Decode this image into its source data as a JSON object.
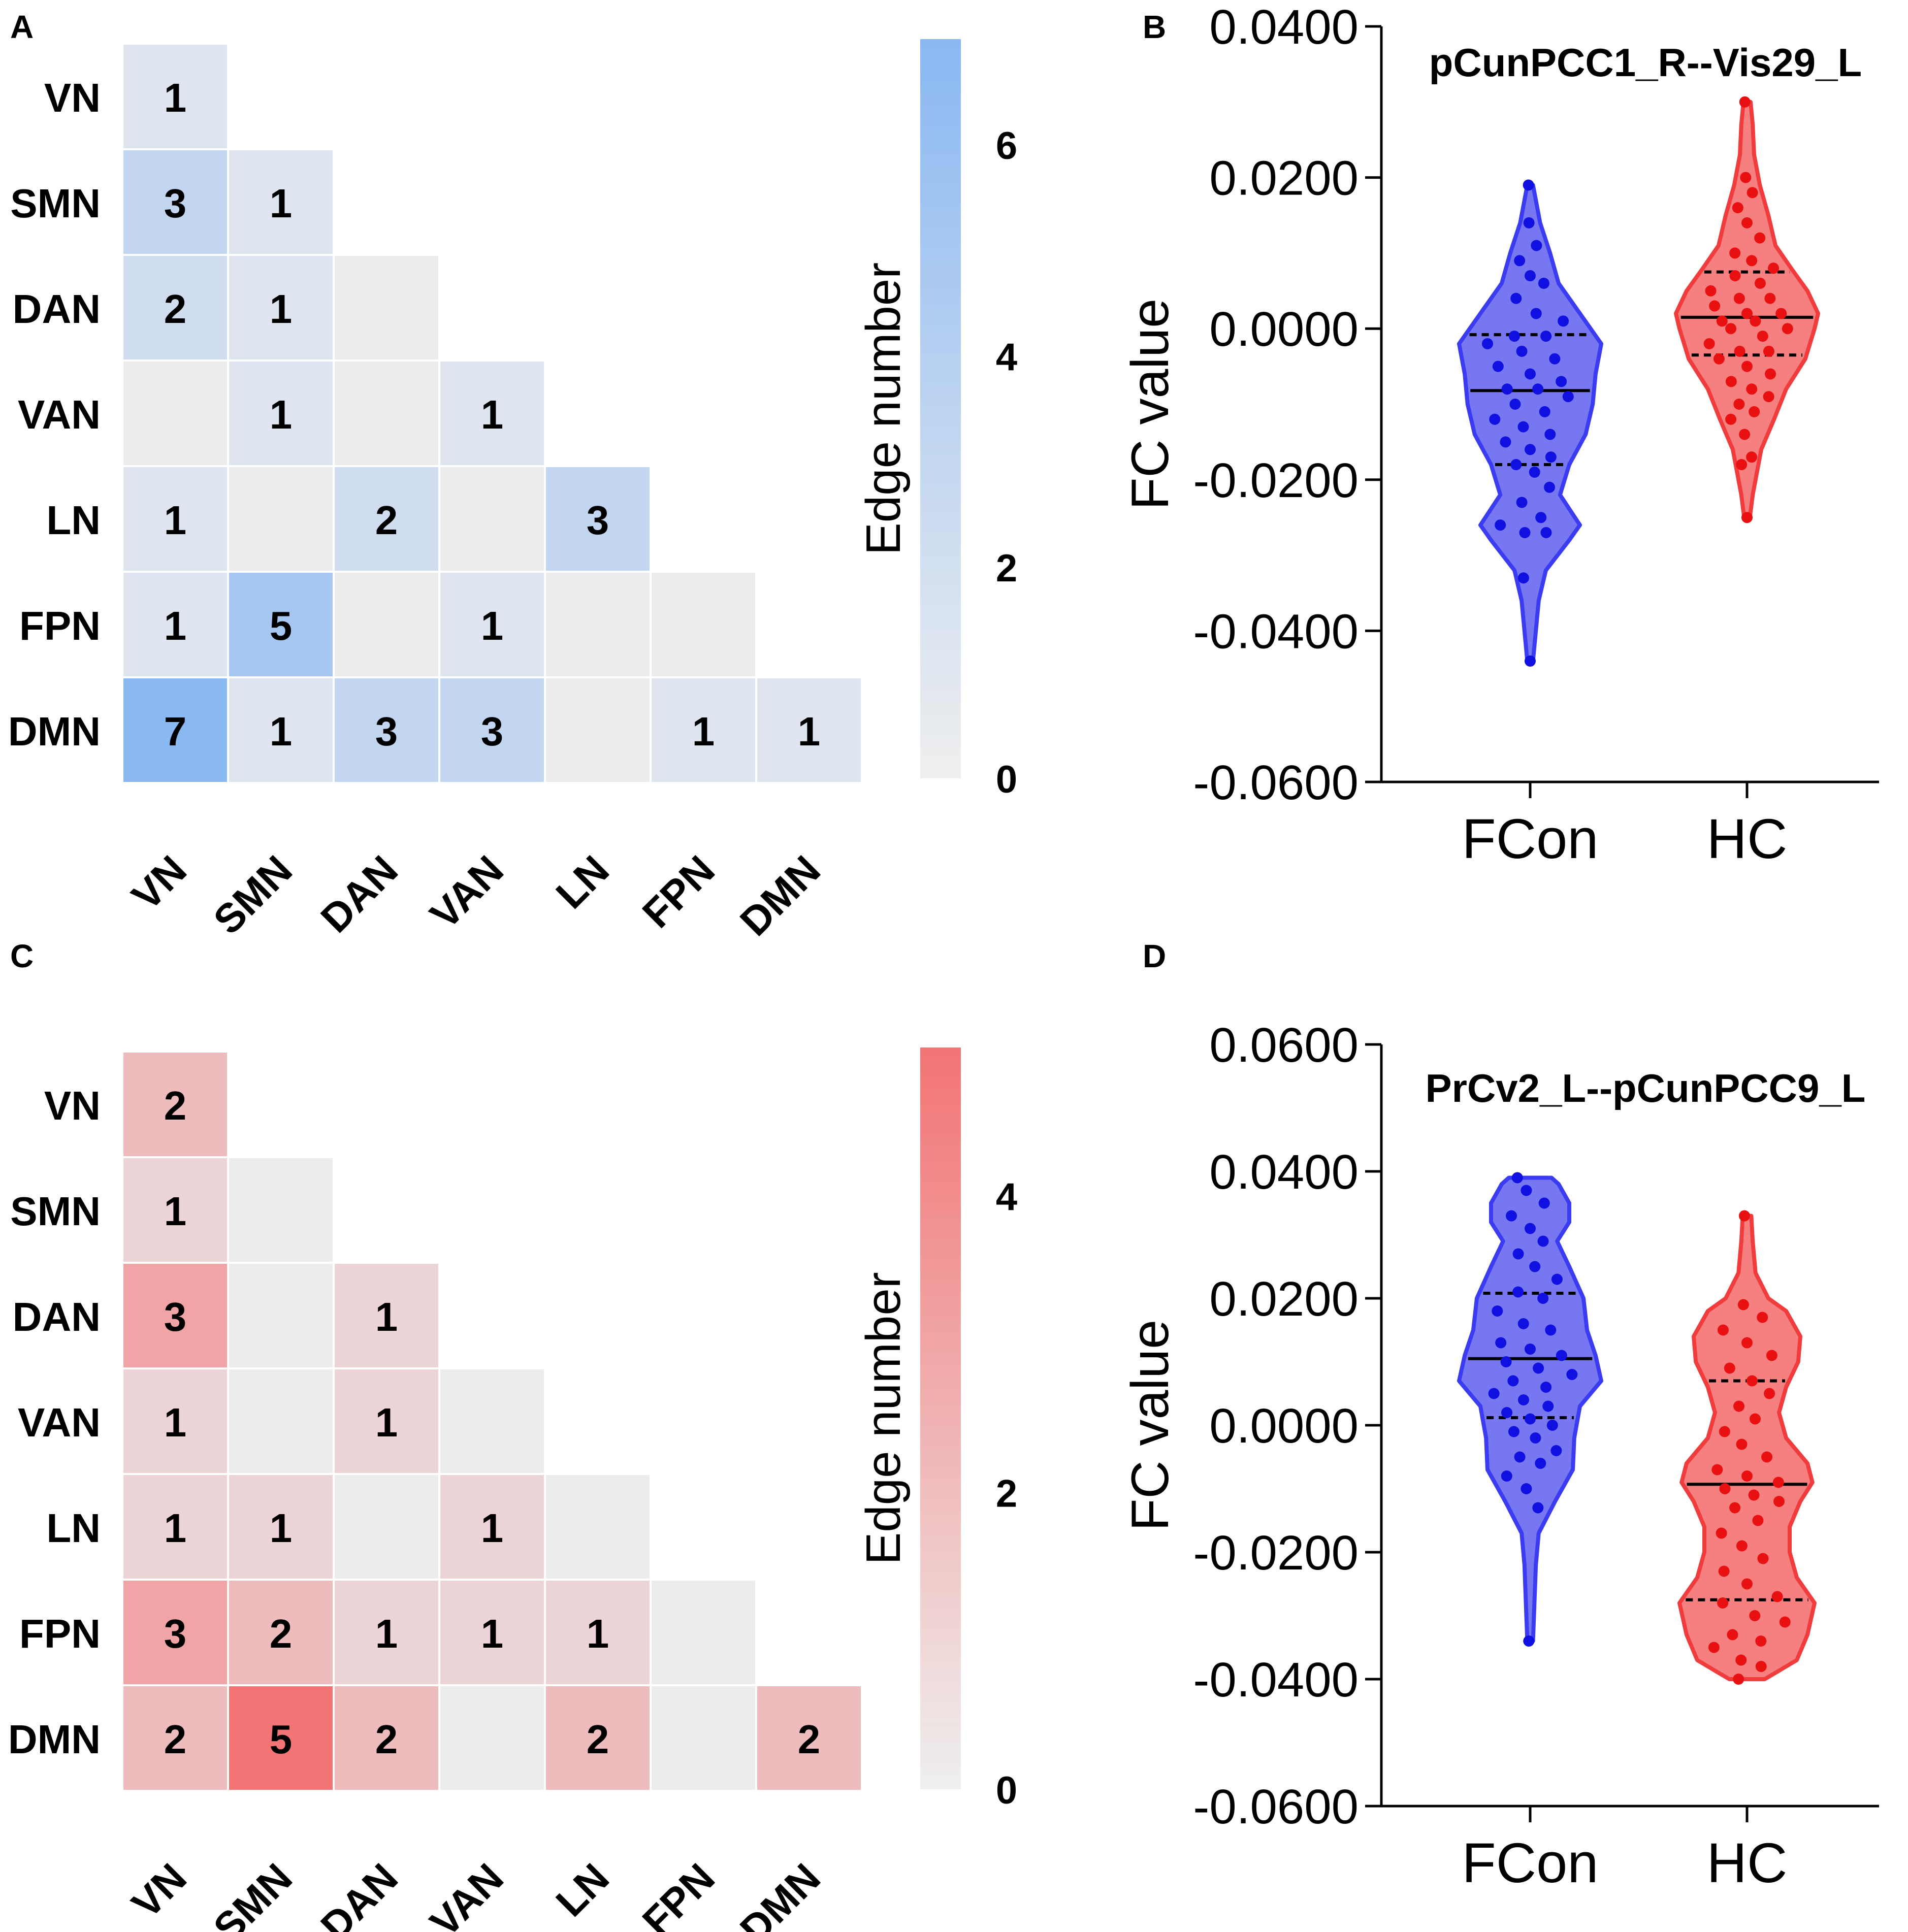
{
  "panels": {
    "A": "A",
    "B": "B",
    "C": "C",
    "D": "D"
  },
  "colors": {
    "blue_max": "#8ab8f2",
    "red_max": "#f27474",
    "zero": "#ececee",
    "fcon_fill": "#5f5ff0",
    "fcon_edge": "#3b3bf2",
    "fcon_dot": "#1010e0",
    "hc_fill": "#f56a6a",
    "hc_edge": "#f03c3c",
    "hc_dot": "#e81010"
  },
  "chart_data": [
    {
      "panel": "A",
      "type": "heatmap",
      "layout": "lower-triangle",
      "rows": [
        "VN",
        "SMN",
        "DAN",
        "VAN",
        "LN",
        "FPN",
        "DMN"
      ],
      "columns": [
        "VN",
        "SMN",
        "DAN",
        "VAN",
        "LN",
        "FPN",
        "DMN"
      ],
      "values": [
        [
          1
        ],
        [
          3,
          1
        ],
        [
          2,
          1,
          0
        ],
        [
          0,
          1,
          0,
          1
        ],
        [
          1,
          0,
          2,
          0,
          3
        ],
        [
          1,
          5,
          0,
          1,
          0,
          0
        ],
        [
          7,
          1,
          3,
          3,
          0,
          1,
          1
        ]
      ],
      "colorbar": {
        "title": "Edge number",
        "min": 0,
        "max": 7,
        "ticks": [
          "0",
          "2",
          "4",
          "6"
        ],
        "color": "blue"
      }
    },
    {
      "panel": "C",
      "type": "heatmap",
      "layout": "lower-triangle",
      "rows": [
        "VN",
        "SMN",
        "DAN",
        "VAN",
        "LN",
        "FPN",
        "DMN"
      ],
      "columns": [
        "VN",
        "SMN",
        "DAN",
        "VAN",
        "LN",
        "FPN",
        "DMN"
      ],
      "values": [
        [
          2
        ],
        [
          1,
          0
        ],
        [
          3,
          0,
          1
        ],
        [
          1,
          0,
          1,
          0
        ],
        [
          1,
          1,
          0,
          1,
          0
        ],
        [
          3,
          2,
          1,
          1,
          1,
          0
        ],
        [
          2,
          5,
          2,
          0,
          2,
          0,
          2
        ]
      ],
      "colorbar": {
        "title": "Edge number",
        "min": 0,
        "max": 5,
        "ticks": [
          "0",
          "2",
          "4"
        ],
        "color": "red"
      }
    },
    {
      "panel": "B",
      "type": "violin",
      "title": "pCunPCC1_R--Vis29_L",
      "ylabel": "FC value",
      "ylim": [
        -0.06,
        0.04
      ],
      "yticks": [
        0.04,
        0.02,
        0.0,
        -0.02,
        -0.04,
        -0.06
      ],
      "ytick_labels": [
        "0.0400",
        "0.0200",
        "0.0000",
        "-0.0200",
        "-0.0400",
        "-0.0600"
      ],
      "categories": [
        "FCon",
        "HC"
      ],
      "groups": [
        {
          "name": "FCon",
          "median": -0.0082,
          "q1": -0.018,
          "q3": -0.0008,
          "min": -0.044,
          "max": 0.019,
          "shape": [
            [
              -0.044,
              0.04
            ],
            [
              -0.04,
              0.08
            ],
            [
              -0.036,
              0.12
            ],
            [
              -0.032,
              0.22
            ],
            [
              -0.028,
              0.55
            ],
            [
              -0.026,
              0.7
            ],
            [
              -0.022,
              0.42
            ],
            [
              -0.018,
              0.55
            ],
            [
              -0.014,
              0.78
            ],
            [
              -0.01,
              0.88
            ],
            [
              -0.006,
              0.92
            ],
            [
              -0.002,
              1.0
            ],
            [
              0.002,
              0.7
            ],
            [
              0.006,
              0.4
            ],
            [
              0.01,
              0.28
            ],
            [
              0.014,
              0.14
            ],
            [
              0.017,
              0.08
            ],
            [
              0.019,
              0.04
            ]
          ],
          "points": [
            0.019,
            0.014,
            0.011,
            0.009,
            0.007,
            0.006,
            0.004,
            0.002,
            0.001,
            -0.001,
            -0.001,
            -0.002,
            -0.003,
            -0.004,
            -0.005,
            -0.006,
            -0.007,
            -0.008,
            -0.008,
            -0.009,
            -0.01,
            -0.011,
            -0.012,
            -0.013,
            -0.014,
            -0.015,
            -0.016,
            -0.017,
            -0.018,
            -0.019,
            -0.021,
            -0.023,
            -0.025,
            -0.026,
            -0.027,
            -0.027,
            -0.033,
            -0.044
          ]
        },
        {
          "name": "HC",
          "median": 0.0015,
          "q1": -0.0035,
          "q3": 0.0075,
          "min": -0.025,
          "max": 0.03,
          "shape": [
            [
              -0.025,
              0.04
            ],
            [
              -0.022,
              0.08
            ],
            [
              -0.019,
              0.14
            ],
            [
              -0.016,
              0.2
            ],
            [
              -0.012,
              0.38
            ],
            [
              -0.008,
              0.55
            ],
            [
              -0.004,
              0.82
            ],
            [
              0.0,
              0.95
            ],
            [
              0.002,
              1.0
            ],
            [
              0.005,
              0.85
            ],
            [
              0.008,
              0.62
            ],
            [
              0.011,
              0.4
            ],
            [
              0.015,
              0.3
            ],
            [
              0.019,
              0.18
            ],
            [
              0.023,
              0.1
            ],
            [
              0.027,
              0.08
            ],
            [
              0.03,
              0.05
            ]
          ],
          "points": [
            0.03,
            0.02,
            0.018,
            0.016,
            0.014,
            0.012,
            0.01,
            0.009,
            0.008,
            0.007,
            0.006,
            0.005,
            0.004,
            0.004,
            0.003,
            0.002,
            0.002,
            0.001,
            0.001,
            0.0,
            0.0,
            -0.001,
            -0.002,
            -0.003,
            -0.003,
            -0.004,
            -0.005,
            -0.006,
            -0.007,
            -0.008,
            -0.009,
            -0.01,
            -0.011,
            -0.012,
            -0.014,
            -0.017,
            -0.018,
            -0.025
          ]
        }
      ]
    },
    {
      "panel": "D",
      "type": "violin",
      "title": "PrCv2_L--pCunPCC9_L",
      "ylabel": "FC value",
      "ylim": [
        -0.06,
        0.06
      ],
      "yticks": [
        0.06,
        0.04,
        0.02,
        0.0,
        -0.02,
        -0.04,
        -0.06
      ],
      "ytick_labels": [
        "0.0600",
        "0.0400",
        "0.0200",
        "0.0000",
        "-0.0200",
        "-0.0400",
        "-0.0600"
      ],
      "categories": [
        "FCon",
        "HC"
      ],
      "groups": [
        {
          "name": "FCon",
          "median": 0.0105,
          "q1": 0.0012,
          "q3": 0.0208,
          "min": -0.034,
          "max": 0.039,
          "shape": [
            [
              -0.034,
              0.04
            ],
            [
              -0.028,
              0.06
            ],
            [
              -0.022,
              0.08
            ],
            [
              -0.017,
              0.12
            ],
            [
              -0.012,
              0.35
            ],
            [
              -0.007,
              0.6
            ],
            [
              -0.002,
              0.62
            ],
            [
              0.003,
              0.7
            ],
            [
              0.007,
              1.0
            ],
            [
              0.011,
              0.92
            ],
            [
              0.015,
              0.8
            ],
            [
              0.02,
              0.75
            ],
            [
              0.025,
              0.55
            ],
            [
              0.029,
              0.38
            ],
            [
              0.032,
              0.55
            ],
            [
              0.035,
              0.55
            ],
            [
              0.038,
              0.4
            ],
            [
              0.039,
              0.3
            ]
          ],
          "points": [
            0.039,
            0.037,
            0.035,
            0.033,
            0.031,
            0.029,
            0.027,
            0.025,
            0.023,
            0.021,
            0.02,
            0.018,
            0.016,
            0.015,
            0.013,
            0.012,
            0.011,
            0.01,
            0.009,
            0.008,
            0.007,
            0.006,
            0.005,
            0.004,
            0.003,
            0.002,
            0.001,
            0.0,
            -0.001,
            -0.002,
            -0.004,
            -0.005,
            -0.006,
            -0.008,
            -0.01,
            -0.013,
            -0.034
          ]
        },
        {
          "name": "HC",
          "median": -0.0093,
          "q1": -0.0275,
          "q3": 0.007,
          "min": -0.04,
          "max": 0.033,
          "shape": [
            [
              -0.04,
              0.25
            ],
            [
              -0.037,
              0.7
            ],
            [
              -0.033,
              0.85
            ],
            [
              -0.028,
              0.95
            ],
            [
              -0.024,
              0.7
            ],
            [
              -0.02,
              0.6
            ],
            [
              -0.016,
              0.6
            ],
            [
              -0.012,
              0.75
            ],
            [
              -0.009,
              0.92
            ],
            [
              -0.006,
              0.85
            ],
            [
              -0.002,
              0.55
            ],
            [
              0.002,
              0.45
            ],
            [
              0.006,
              0.55
            ],
            [
              0.01,
              0.72
            ],
            [
              0.014,
              0.75
            ],
            [
              0.018,
              0.55
            ],
            [
              0.02,
              0.3
            ],
            [
              0.024,
              0.12
            ],
            [
              0.029,
              0.08
            ],
            [
              0.033,
              0.06
            ]
          ],
          "points": [
            0.033,
            0.019,
            0.017,
            0.015,
            0.013,
            0.011,
            0.009,
            0.007,
            0.005,
            0.003,
            0.001,
            -0.001,
            -0.003,
            -0.005,
            -0.007,
            -0.008,
            -0.009,
            -0.01,
            -0.011,
            -0.012,
            -0.013,
            -0.015,
            -0.017,
            -0.019,
            -0.021,
            -0.023,
            -0.025,
            -0.027,
            -0.028,
            -0.03,
            -0.031,
            -0.033,
            -0.034,
            -0.035,
            -0.037,
            -0.038,
            -0.04
          ]
        }
      ]
    }
  ]
}
